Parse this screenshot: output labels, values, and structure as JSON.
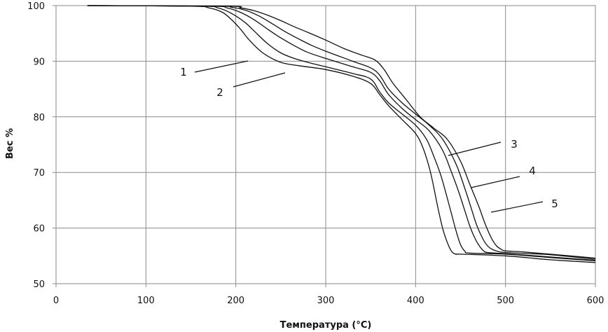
{
  "chart_data": {
    "type": "line",
    "xlabel": "Температура (°C)",
    "ylabel": "Вес %",
    "xlim": [
      0,
      600
    ],
    "ylim": [
      50,
      100
    ],
    "xticks": [
      0,
      100,
      200,
      300,
      400,
      500,
      600
    ],
    "yticks": [
      50,
      60,
      70,
      80,
      90,
      100
    ],
    "grid": true,
    "series": [
      {
        "name": "1",
        "x": [
          35,
          150,
          170,
          185,
          195,
          205,
          215,
          230,
          250,
          270,
          300,
          330,
          350,
          360,
          370,
          385,
          400,
          408,
          415,
          420,
          425,
          430,
          435,
          440,
          445,
          450,
          500,
          550,
          600
        ],
        "y": [
          100,
          99.9,
          99.6,
          98.8,
          97.5,
          95.8,
          93.8,
          91.5,
          89.8,
          89.2,
          88.5,
          87.3,
          86.0,
          84.0,
          82.0,
          79.5,
          77.0,
          74.5,
          71.0,
          67.5,
          63.5,
          60.0,
          57.5,
          55.8,
          55.3,
          55.3,
          55.0,
          54.3,
          53.8
        ]
      },
      {
        "name": "2",
        "x": [
          35,
          160,
          180,
          195,
          210,
          220,
          235,
          250,
          265,
          280,
          300,
          330,
          350,
          360,
          370,
          385,
          400,
          412,
          420,
          428,
          435,
          440,
          445,
          450,
          455,
          460,
          500,
          550,
          600
        ],
        "y": [
          100,
          99.9,
          99.6,
          98.6,
          97.0,
          95.5,
          93.2,
          91.5,
          90.5,
          89.8,
          89.0,
          87.8,
          86.8,
          84.5,
          82.5,
          80.5,
          78.5,
          76.0,
          73.0,
          69.5,
          65.5,
          62.5,
          59.5,
          57.0,
          55.8,
          55.5,
          55.3,
          54.7,
          54.1
        ]
      },
      {
        "name": "3",
        "x": [
          35,
          170,
          190,
          205,
          220,
          235,
          250,
          265,
          280,
          300,
          330,
          350,
          360,
          370,
          385,
          400,
          415,
          430,
          440,
          448,
          455,
          460,
          465,
          470,
          475,
          480,
          500,
          550,
          600
        ],
        "y": [
          100,
          99.9,
          99.6,
          98.8,
          97.5,
          95.8,
          94.2,
          92.8,
          91.6,
          90.5,
          89.0,
          88.0,
          86.5,
          84.0,
          81.5,
          79.5,
          77.5,
          74.0,
          70.0,
          66.5,
          63.0,
          60.5,
          58.5,
          57.0,
          56.0,
          55.6,
          55.4,
          54.8,
          54.2
        ]
      },
      {
        "name": "4",
        "x": [
          35,
          180,
          195,
          210,
          225,
          240,
          255,
          270,
          285,
          300,
          330,
          350,
          360,
          370,
          385,
          400,
          415,
          430,
          445,
          455,
          462,
          468,
          475,
          480,
          485,
          490,
          500,
          550,
          600
        ],
        "y": [
          100,
          99.9,
          99.7,
          99.2,
          98.2,
          96.8,
          95.3,
          94.0,
          92.8,
          91.8,
          90.0,
          88.8,
          87.5,
          85.0,
          82.5,
          80.5,
          78.5,
          76.0,
          71.5,
          67.0,
          63.5,
          60.5,
          58.0,
          56.8,
          56.2,
          55.9,
          55.6,
          55.2,
          54.4
        ]
      },
      {
        "name": "5",
        "x": [
          35,
          190,
          205,
          220,
          235,
          250,
          265,
          280,
          300,
          320,
          340,
          355,
          365,
          375,
          390,
          405,
          420,
          435,
          450,
          460,
          470,
          478,
          485,
          490,
          495,
          500,
          520,
          550,
          600
        ],
        "y": [
          100,
          99.9,
          99.6,
          99.1,
          98.3,
          97.3,
          96.2,
          95.2,
          93.8,
          92.3,
          91.1,
          90.2,
          88.5,
          86.0,
          83.0,
          80.0,
          78.0,
          76.0,
          72.0,
          68.0,
          64.0,
          60.5,
          58.0,
          56.8,
          56.2,
          55.9,
          55.7,
          55.3,
          54.6
        ]
      }
    ],
    "annotations": [
      {
        "text": "1",
        "target_series": "1"
      },
      {
        "text": "2",
        "target_series": "2"
      },
      {
        "text": "3",
        "target_series": "3"
      },
      {
        "text": "4",
        "target_series": "4"
      },
      {
        "text": "5",
        "target_series": "5"
      }
    ]
  }
}
